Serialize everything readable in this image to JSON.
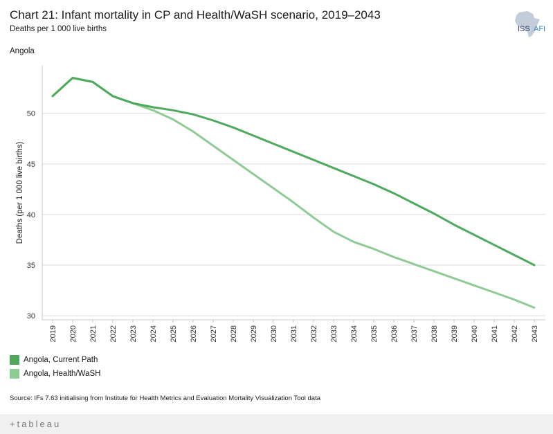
{
  "header": {
    "title": "Chart 21: Infant mortality in CP and Health/WaSH scenario, 2019–2043",
    "subtitle": "Deaths per 1 000 live births",
    "country": "Angola"
  },
  "logo": {
    "text": "ISS",
    "text2": "AFI"
  },
  "legend": {
    "items": [
      {
        "label": "Angola,  Current Path",
        "color": "#4fa95c"
      },
      {
        "label": "Angola,  Health/WaSH",
        "color": "#8fcb94"
      }
    ]
  },
  "source": "Source: IFs 7.63 initialising from Institute for Health Metrics and Evaluation Mortality Visualization Tool data",
  "footer": {
    "brand": "+tableau"
  },
  "chart_data": {
    "type": "line",
    "title": "Chart 21: Infant mortality in CP and Health/WaSH scenario, 2019–2043",
    "xlabel": "",
    "ylabel": "Deaths (per 1 000 live births)",
    "ylim": [
      29.6,
      54.7
    ],
    "yticks": [
      30,
      35,
      40,
      45,
      50
    ],
    "grid": true,
    "legend_position": "bottom-left",
    "x": [
      2019,
      2020,
      2021,
      2022,
      2023,
      2024,
      2025,
      2026,
      2027,
      2028,
      2029,
      2030,
      2031,
      2032,
      2033,
      2034,
      2035,
      2036,
      2037,
      2038,
      2039,
      2040,
      2041,
      2042,
      2043
    ],
    "series": [
      {
        "name": "Angola,  Current Path",
        "color": "#4fa95c",
        "values": [
          51.7,
          53.5,
          53.1,
          51.7,
          51.0,
          50.6,
          50.3,
          49.9,
          49.3,
          48.6,
          47.8,
          47.0,
          46.2,
          45.4,
          44.6,
          43.8,
          43.0,
          42.1,
          41.1,
          40.1,
          39.0,
          38.0,
          37.0,
          36.0,
          35.0
        ]
      },
      {
        "name": "Angola,  Health/WaSH",
        "color": "#8fcb94",
        "values": [
          51.7,
          53.5,
          53.1,
          51.7,
          51.0,
          50.3,
          49.4,
          48.2,
          46.8,
          45.4,
          44.0,
          42.6,
          41.2,
          39.7,
          38.3,
          37.3,
          36.6,
          35.8,
          35.1,
          34.4,
          33.7,
          33.0,
          32.3,
          31.6,
          30.8
        ]
      }
    ]
  }
}
